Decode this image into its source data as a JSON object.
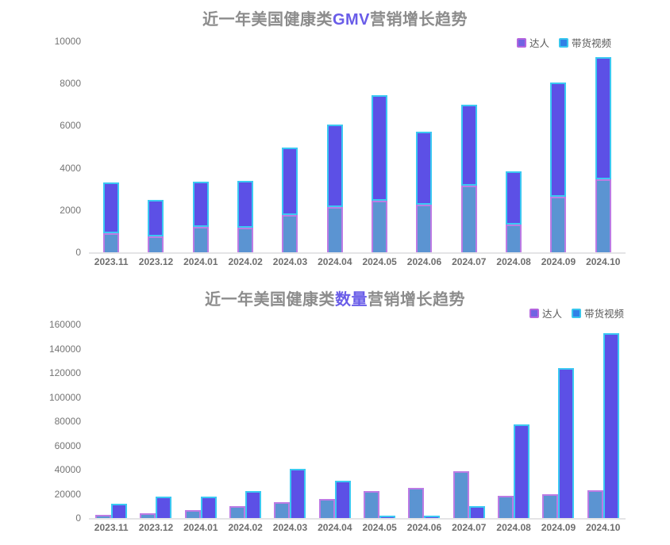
{
  "page": {
    "background": "#ffffff"
  },
  "colors": {
    "title_gray": "#8C8C8C",
    "title_highlight": "#695CE8",
    "axis_line": "#E4E4E6",
    "y_label": "#757575",
    "x_label": "#6E6E6E",
    "daren_fill": "#5B94D2",
    "daren_border": "#BC7BE4",
    "video_fill": "#5C50E6",
    "video_border": "#3BC8F2"
  },
  "chart_data": [
    {
      "type": "bar",
      "variant": "stacked",
      "title": "近一年美国健康类GMV营销增长趋势",
      "title_parts": {
        "prefix": "近一年美国健康类",
        "highlight": "GMV",
        "suffix": "营销增长趋势"
      },
      "legend_position": "top-right",
      "grid": false,
      "ylim": [
        0,
        10000
      ],
      "ytick_step": 2000,
      "yticks": [
        0,
        2000,
        4000,
        6000,
        8000,
        10000
      ],
      "categories": [
        "2023.11",
        "2023.12",
        "2024.01",
        "2024.02",
        "2024.03",
        "2024.04",
        "2024.05",
        "2024.06",
        "2024.07",
        "2024.08",
        "2024.09",
        "2024.10"
      ],
      "series": [
        {
          "key": "daren",
          "name": "达人",
          "values": [
            900,
            750,
            1200,
            1150,
            1750,
            2150,
            2450,
            2250,
            3150,
            1300,
            2650,
            3450
          ],
          "fill": "#5B94D2",
          "border": "#BC7BE4",
          "legend_fill": "#7163E2",
          "legend_border": "#B465DE"
        },
        {
          "key": "shoppable-video",
          "name": "带货视频",
          "values": [
            2400,
            1750,
            2150,
            2250,
            3200,
            3900,
            5000,
            3450,
            3850,
            2550,
            5400,
            5800
          ],
          "fill": "#5C50E6",
          "border": "#3BC8F2",
          "legend_fill": "#2F80E6",
          "legend_border": "#38C6EE"
        }
      ]
    },
    {
      "type": "bar",
      "variant": "grouped",
      "title": "近一年美国健康类数量营销增长趋势",
      "title_parts": {
        "prefix": "近一年美国健康类",
        "highlight": "数量",
        "suffix": "营销增长趋势"
      },
      "legend_position": "top-right",
      "grid": false,
      "ylim": [
        0,
        160000
      ],
      "ytick_step": 20000,
      "yticks": [
        0,
        20000,
        40000,
        60000,
        80000,
        100000,
        120000,
        140000,
        160000
      ],
      "categories": [
        "2023.11",
        "2023.12",
        "2024.01",
        "2024.02",
        "2024.03",
        "2024.04",
        "2024.05",
        "2024.06",
        "2024.07",
        "2024.08",
        "2024.09",
        "2024.10"
      ],
      "series": [
        {
          "key": "daren",
          "name": "达人",
          "values": [
            2500,
            4000,
            6500,
            10000,
            13000,
            16000,
            22000,
            25000,
            38500,
            18500,
            20000,
            23000
          ],
          "fill": "#5B94D2",
          "border": "#BC7BE4",
          "legend_fill": "#7163E2",
          "legend_border": "#B465DE"
        },
        {
          "key": "shoppable-video",
          "name": "带货视频",
          "values": [
            12000,
            17500,
            17500,
            22500,
            40500,
            31000,
            2000,
            2000,
            10000,
            77500,
            124000,
            153000
          ],
          "fill": "#5C50E6",
          "border": "#3BC8F2",
          "legend_fill": "#2F80E6",
          "legend_border": "#38C6EE"
        }
      ]
    }
  ]
}
